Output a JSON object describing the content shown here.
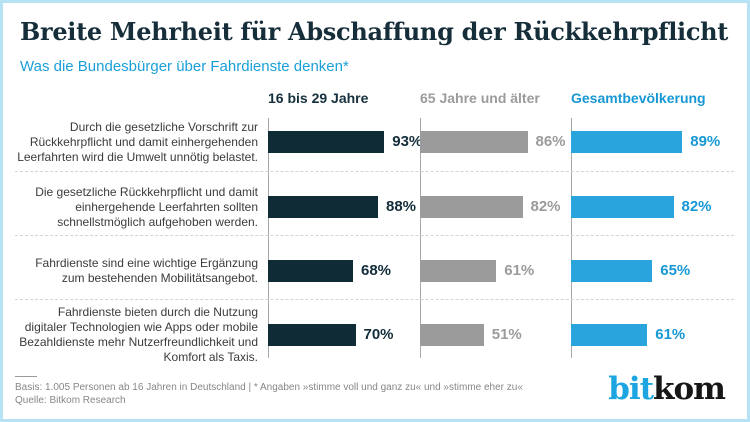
{
  "page": {
    "title": "Breite Mehrheit für Abschaffung der Rückkehrpflicht",
    "subtitle": "Was die Bundesbürger über Fahrdienste denken*"
  },
  "chart_data": {
    "type": "bar",
    "orientation": "horizontal",
    "unit": "%",
    "xlim": [
      0,
      100
    ],
    "grid": "dashed-row-separators",
    "legend_position": "column-headers-top",
    "categories": [
      "Durch die gesetzliche Vorschrift zur Rückkehrpflicht und damit einhergehenden Leerfahrten wird die Umwelt unnötig belastet.",
      "Die gesetzliche Rückkehrpflicht und damit einhergehende Leerfahrten sollten schnellstmöglich aufgehoben werden.",
      "Fahrdienste sind eine wichtige Ergänzung zum bestehenden Mobilitätsangebot.",
      "Fahrdienste bieten durch die Nutzung digitaler Technologien wie Apps oder mobile Bezahldienste mehr Nutzerfreundlichkeit und Komfort als Taxis."
    ],
    "series": [
      {
        "name": "16 bis 29 Jahre",
        "color": "#0e2b36",
        "label_color": "#132d3a",
        "values": [
          93,
          88,
          68,
          70
        ]
      },
      {
        "name": "65 Jahre und älter",
        "color": "#9b9b9b",
        "label_color": "#9b9b9b",
        "values": [
          86,
          82,
          61,
          51
        ]
      },
      {
        "name": "Gesamtbevölkerung",
        "color": "#2aa4dc",
        "label_color": "#1798d5",
        "values": [
          89,
          82,
          65,
          61
        ]
      }
    ]
  },
  "footer": {
    "basis": "Basis: 1.005 Personen ab 16 Jahren in Deutschland | * Angaben »stimme voll und ganz zu« und »stimme eher zu«",
    "source": "Quelle: Bitkom Research",
    "logo_bit": "bit",
    "logo_kom": "kom"
  },
  "colors": {
    "frame_border": "#b6e2f4",
    "title": "#162e3a",
    "subtitle": "#1b9fd9",
    "axis_line": "#a8a8a8",
    "separator": "#d4d4d4",
    "footer_text": "#878787",
    "logo_blue": "#1da5e2",
    "logo_dark": "#161616"
  }
}
